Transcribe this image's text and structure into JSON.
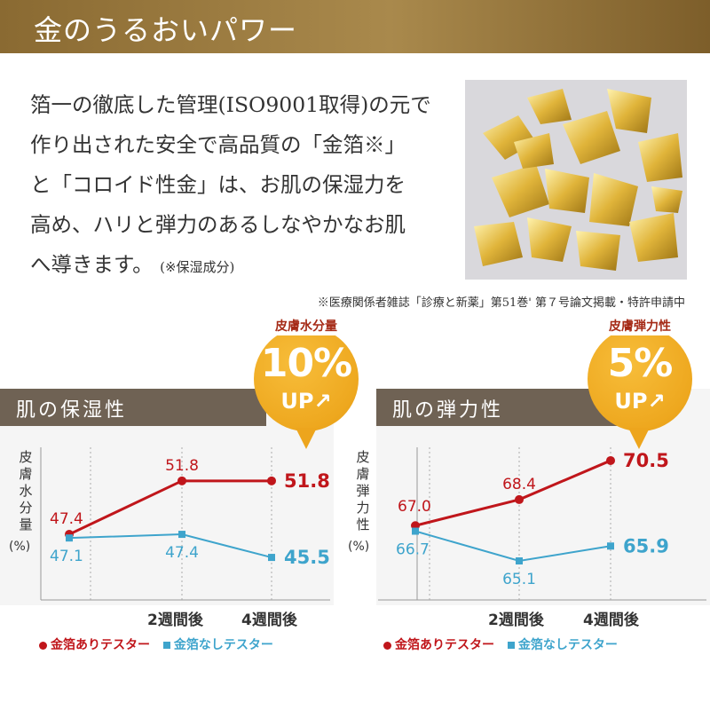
{
  "header": {
    "title": "金のうるおいパワー"
  },
  "intro": {
    "lines": [
      "箔一の徹底した管理(ISO9001取得)の元で",
      "作り出された安全で高品質の「金箔※」",
      "と「コロイド性金」は、お肌の保湿力を",
      "高め、ハリと弾力のあるしなやかなお肌",
      "へ導きます。"
    ],
    "note": "(※保湿成分)"
  },
  "footnote": "※医療関係者雑誌「診療と新薬」第51巻' 第７号論文掲載・特許申請中",
  "colors": {
    "gold": "#c0161b",
    "nogold": "#3ea4cc",
    "header": "#8a6a32",
    "badge": "#eea81f",
    "panel_title": "#6f6254"
  },
  "chart_data": [
    {
      "type": "line",
      "title": "肌の保湿性",
      "ylabel": "皮膚水分量",
      "yunit": "(%)",
      "categories": [
        "",
        "2週間後",
        "4週間後"
      ],
      "series": [
        {
          "name": "金箔ありテスター",
          "values": [
            47.4,
            51.8,
            51.8
          ],
          "labels": [
            "47.4",
            "51.8",
            "51.8"
          ]
        },
        {
          "name": "金箔なしテスター",
          "values": [
            47.1,
            47.4,
            45.5
          ],
          "labels": [
            "47.1",
            "47.4",
            "45.5"
          ]
        }
      ],
      "ylim": [
        42,
        55
      ],
      "badge": {
        "label": "皮膚水分量",
        "value": "10%",
        "up": "UP↗"
      }
    },
    {
      "type": "line",
      "title": "肌の弾力性",
      "ylabel": "皮膚弾力性",
      "yunit": "(%)",
      "categories": [
        "",
        "2週間後",
        "4週間後"
      ],
      "series": [
        {
          "name": "金箔ありテスター",
          "values": [
            67.0,
            68.4,
            70.5
          ],
          "labels": [
            "67.0",
            "68.4",
            "70.5"
          ]
        },
        {
          "name": "金箔なしテスター",
          "values": [
            66.7,
            65.1,
            65.9
          ],
          "labels": [
            "66.7",
            "65.1",
            "65.9"
          ]
        }
      ],
      "ylim": [
        63,
        71.5
      ],
      "badge": {
        "label": "皮膚弾力性",
        "value": "5%",
        "up": "UP↗"
      }
    }
  ]
}
